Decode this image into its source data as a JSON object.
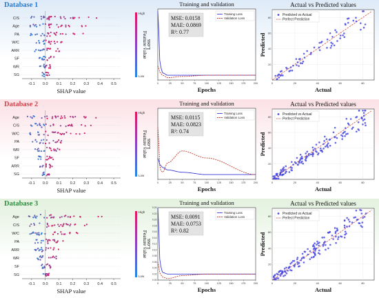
{
  "bands": [
    {
      "title": "Database 1",
      "title_color": "#2b7bd1",
      "band_color": "#ddeaf7",
      "shap": {
        "features": [
          "C/S",
          "Age",
          "PA",
          "W/C",
          "ARR",
          "SF",
          "WR",
          "SG"
        ],
        "xlabel": "SHAP value",
        "xticks": [
          -0.1,
          0.0,
          0.1,
          0.2,
          0.3,
          0.4,
          0.5
        ],
        "xlim": [
          -0.17,
          0.55
        ],
        "colorbar_label": "Feature value",
        "colorbar_high": "High",
        "colorbar_low": "Low"
      },
      "loss": {
        "title": "Training and validation",
        "xlabel": "Epochs",
        "ylabel": "Loss",
        "legend": [
          "Training Loss",
          "Validation Loss"
        ],
        "metrics": [
          "MSE: 0.0158",
          "MAE: 0.0869",
          "R²: 0.77"
        ],
        "xticks": [
          0,
          25,
          50,
          75,
          100,
          125,
          150,
          175,
          200
        ],
        "xlim": [
          0,
          200
        ],
        "ylim": [
          0,
          0.3
        ]
      },
      "avp": {
        "title": "Actual vs Predicted values",
        "xlabel": "Actual",
        "ylabel": "Predicted",
        "legend": [
          "Predicted vs Actual",
          "Perfect Prediction"
        ],
        "xticks": [
          0,
          20,
          40,
          60,
          80
        ],
        "yticks": [
          20,
          40,
          60,
          80
        ],
        "xlim": [
          0,
          90
        ],
        "ylim": [
          0,
          90
        ]
      }
    },
    {
      "title": "Database 2",
      "title_color": "#d8434b",
      "band_color": "#fbe1e6",
      "shap": {
        "features": [
          "Age",
          "C/S",
          "W/C",
          "PA",
          "WR",
          "SF",
          "ARR",
          "SG"
        ],
        "xlabel": "SHAP value",
        "xticks": [
          -0.1,
          0.0,
          0.1,
          0.2,
          0.3,
          0.4,
          0.5
        ],
        "xlim": [
          -0.17,
          0.55
        ],
        "colorbar_label": "Feature value",
        "colorbar_high": "High",
        "colorbar_low": "Low"
      },
      "loss": {
        "title": "Training and validation",
        "xlabel": "Epochs",
        "ylabel": "Loss",
        "legend": [
          "Training Loss",
          "Validation Loss"
        ],
        "metrics": [
          "MSE: 0.0115",
          "MAE: 0.0823",
          "R²: 0.74"
        ],
        "xticks": [
          0,
          25,
          50,
          75,
          100,
          125,
          150,
          175,
          200
        ],
        "xlim": [
          0,
          200
        ],
        "ylim": [
          0,
          0.3
        ]
      },
      "avp": {
        "title": "Actual vs Predicted values",
        "xlabel": "Actual",
        "ylabel": "Predicted",
        "legend": [
          "Predicted vs Actual",
          "Perfect Prediction"
        ],
        "xticks": [
          0,
          20,
          40,
          60,
          80
        ],
        "yticks": [
          20,
          40,
          60,
          80
        ],
        "xlim": [
          0,
          90
        ],
        "ylim": [
          0,
          90
        ]
      }
    },
    {
      "title": "Database 3",
      "title_color": "#2e8f3e",
      "band_color": "#e3f1de",
      "shap": {
        "features": [
          "Age",
          "C/S",
          "W/C",
          "PA",
          "ARR",
          "WR",
          "SF",
          "SG"
        ],
        "xlabel": "SHAP value",
        "xticks": [
          -0.1,
          0.0,
          0.1,
          0.2,
          0.3,
          0.4,
          0.5
        ],
        "xlim": [
          -0.17,
          0.55
        ],
        "colorbar_label": "Feature value",
        "colorbar_high": "High",
        "colorbar_low": "Low"
      },
      "loss": {
        "title": "Training and validation",
        "xlabel": "Epochs",
        "ylabel": "Loss",
        "legend": [
          "Training Loss",
          "Validation Loss"
        ],
        "metrics": [
          "MSE: 0.0091",
          "MAE: 0.0753",
          "R²: 0.82"
        ],
        "xticks": [
          0,
          25,
          50,
          75,
          100,
          125,
          150,
          175,
          200
        ],
        "xlim": [
          0,
          200
        ],
        "ylim": [
          0,
          0.24
        ],
        "yticks": [
          0.0,
          0.02,
          0.04,
          0.06,
          0.08,
          0.1,
          0.12,
          0.14,
          0.16,
          0.18,
          0.2,
          0.22,
          0.24
        ]
      },
      "avp": {
        "title": "Actual vs Predicted values",
        "xlabel": "Actual",
        "ylabel": "Predicted",
        "legend": [
          "Predicted vs Actual",
          "Perfect Prediction"
        ],
        "xticks": [
          0,
          20,
          40,
          60,
          80
        ],
        "yticks": [
          20,
          40,
          60,
          80
        ],
        "xlim": [
          0,
          90
        ],
        "ylim": [
          0,
          90
        ]
      }
    }
  ],
  "colors": {
    "shap_high": "#e8145a",
    "shap_low": "#1e88e5",
    "train_line": "#3a3ad9",
    "val_line": "#c0392b",
    "scatter": "#4a4ae0",
    "perfect": "#d64a3a"
  },
  "chart_data": [
    {
      "type": "line",
      "title": "Training and validation",
      "xlabel": "Epochs",
      "ylabel": "Loss",
      "series": [
        {
          "name": "Training Loss",
          "x": [
            0,
            5,
            10,
            20,
            50,
            100,
            200
          ],
          "y": [
            0.29,
            0.06,
            0.03,
            0.02,
            0.02,
            0.02,
            0.02
          ]
        },
        {
          "name": "Validation Loss",
          "x": [
            0,
            5,
            10,
            20,
            50,
            100,
            200
          ],
          "y": [
            0.06,
            0.03,
            0.02,
            0.01,
            0.015,
            0.02,
            0.02
          ]
        }
      ]
    },
    {
      "type": "line",
      "title": "Training and validation",
      "xlabel": "Epochs",
      "ylabel": "Loss",
      "series": [
        {
          "name": "Training Loss",
          "x": [
            0,
            5,
            10,
            20,
            50,
            100,
            200
          ],
          "y": [
            0.09,
            0.06,
            0.05,
            0.04,
            0.03,
            0.02,
            0.02
          ]
        },
        {
          "name": "Validation Loss",
          "x": [
            0,
            5,
            10,
            20,
            50,
            100,
            200
          ],
          "y": [
            0.22,
            0.04,
            0.03,
            0.07,
            0.12,
            0.09,
            0.02
          ]
        }
      ]
    },
    {
      "type": "line",
      "title": "Training and validation",
      "xlabel": "Epochs",
      "ylabel": "Loss",
      "series": [
        {
          "name": "Training Loss",
          "x": [
            0,
            5,
            10,
            20,
            50,
            100,
            200
          ],
          "y": [
            0.24,
            0.05,
            0.025,
            0.02,
            0.02,
            0.02,
            0.02
          ]
        },
        {
          "name": "Validation Loss",
          "x": [
            0,
            5,
            10,
            20,
            50,
            100,
            200
          ],
          "y": [
            0.06,
            0.02,
            0.01,
            0.005,
            0.015,
            0.02,
            0.02
          ]
        }
      ]
    }
  ]
}
